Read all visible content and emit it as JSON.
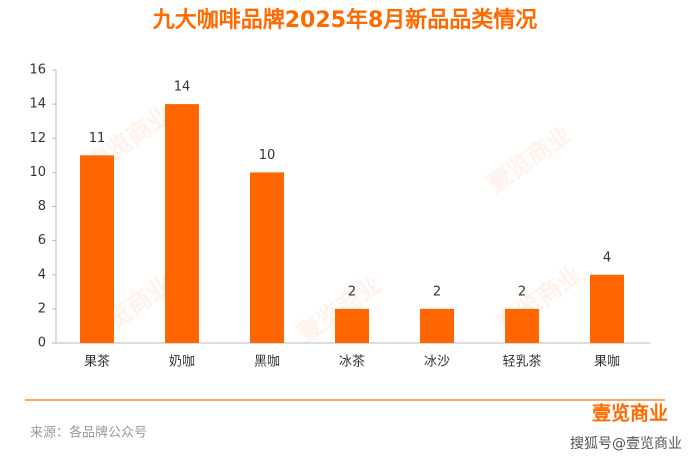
{
  "chart_data": {
    "type": "bar",
    "title": "九大咖啡品牌2025年8月新品品类情况",
    "categories": [
      "果茶",
      "奶咖",
      "黑咖",
      "冰茶",
      "冰沙",
      "轻乳茶",
      "果咖"
    ],
    "values": [
      11,
      14,
      10,
      2,
      2,
      2,
      4
    ],
    "color": "#ff6600",
    "ylim": [
      0,
      16
    ],
    "yticks": [
      0,
      2,
      4,
      6,
      8,
      10,
      12,
      14,
      16
    ],
    "grid": false,
    "source": "来源：各品牌公众号",
    "watermark": "壹览商业",
    "platform_mark": "搜狐号@壹览商业"
  }
}
